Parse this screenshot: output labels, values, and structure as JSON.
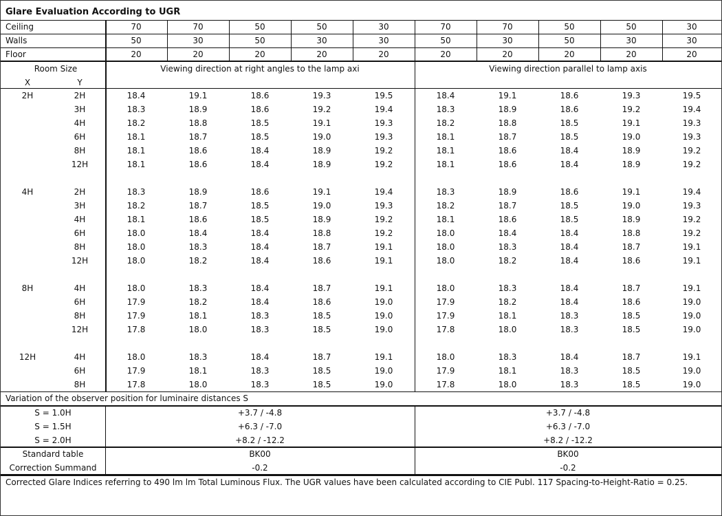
{
  "title": "Glare Evaluation According to UGR",
  "reflectances": {
    "ceiling": {
      "label": "Ceiling",
      "values": [
        "70",
        "70",
        "50",
        "50",
        "30",
        "70",
        "70",
        "50",
        "50",
        "30"
      ]
    },
    "walls": {
      "label": "Walls",
      "values": [
        "50",
        "30",
        "50",
        "30",
        "30",
        "50",
        "30",
        "50",
        "30",
        "30"
      ]
    },
    "floor": {
      "label": "Floor",
      "values": [
        "20",
        "20",
        "20",
        "20",
        "20",
        "20",
        "20",
        "20",
        "20",
        "20"
      ]
    }
  },
  "header": {
    "room_size": "Room Size",
    "x": "X",
    "y": "Y",
    "left_title": "Viewing direction at right angles to the lamp axi",
    "right_title": "Viewing direction parallel to lamp axis"
  },
  "groups": [
    {
      "x": "2H",
      "rows": [
        {
          "y": "2H",
          "values": [
            "18.4",
            "19.1",
            "18.6",
            "19.3",
            "19.5",
            "18.4",
            "19.1",
            "18.6",
            "19.3",
            "19.5"
          ]
        },
        {
          "y": "3H",
          "values": [
            "18.3",
            "18.9",
            "18.6",
            "19.2",
            "19.4",
            "18.3",
            "18.9",
            "18.6",
            "19.2",
            "19.4"
          ]
        },
        {
          "y": "4H",
          "values": [
            "18.2",
            "18.8",
            "18.5",
            "19.1",
            "19.3",
            "18.2",
            "18.8",
            "18.5",
            "19.1",
            "19.3"
          ]
        },
        {
          "y": "6H",
          "values": [
            "18.1",
            "18.7",
            "18.5",
            "19.0",
            "19.3",
            "18.1",
            "18.7",
            "18.5",
            "19.0",
            "19.3"
          ]
        },
        {
          "y": "8H",
          "values": [
            "18.1",
            "18.6",
            "18.4",
            "18.9",
            "19.2",
            "18.1",
            "18.6",
            "18.4",
            "18.9",
            "19.2"
          ]
        },
        {
          "y": "12H",
          "values": [
            "18.1",
            "18.6",
            "18.4",
            "18.9",
            "19.2",
            "18.1",
            "18.6",
            "18.4",
            "18.9",
            "19.2"
          ]
        }
      ]
    },
    {
      "x": "4H",
      "rows": [
        {
          "y": "2H",
          "values": [
            "18.3",
            "18.9",
            "18.6",
            "19.1",
            "19.4",
            "18.3",
            "18.9",
            "18.6",
            "19.1",
            "19.4"
          ]
        },
        {
          "y": "3H",
          "values": [
            "18.2",
            "18.7",
            "18.5",
            "19.0",
            "19.3",
            "18.2",
            "18.7",
            "18.5",
            "19.0",
            "19.3"
          ]
        },
        {
          "y": "4H",
          "values": [
            "18.1",
            "18.6",
            "18.5",
            "18.9",
            "19.2",
            "18.1",
            "18.6",
            "18.5",
            "18.9",
            "19.2"
          ]
        },
        {
          "y": "6H",
          "values": [
            "18.0",
            "18.4",
            "18.4",
            "18.8",
            "19.2",
            "18.0",
            "18.4",
            "18.4",
            "18.8",
            "19.2"
          ]
        },
        {
          "y": "8H",
          "values": [
            "18.0",
            "18.3",
            "18.4",
            "18.7",
            "19.1",
            "18.0",
            "18.3",
            "18.4",
            "18.7",
            "19.1"
          ]
        },
        {
          "y": "12H",
          "values": [
            "18.0",
            "18.2",
            "18.4",
            "18.6",
            "19.1",
            "18.0",
            "18.2",
            "18.4",
            "18.6",
            "19.1"
          ]
        }
      ]
    },
    {
      "x": "8H",
      "rows": [
        {
          "y": "4H",
          "values": [
            "18.0",
            "18.3",
            "18.4",
            "18.7",
            "19.1",
            "18.0",
            "18.3",
            "18.4",
            "18.7",
            "19.1"
          ]
        },
        {
          "y": "6H",
          "values": [
            "17.9",
            "18.2",
            "18.4",
            "18.6",
            "19.0",
            "17.9",
            "18.2",
            "18.4",
            "18.6",
            "19.0"
          ]
        },
        {
          "y": "8H",
          "values": [
            "17.9",
            "18.1",
            "18.3",
            "18.5",
            "19.0",
            "17.9",
            "18.1",
            "18.3",
            "18.5",
            "19.0"
          ]
        },
        {
          "y": "12H",
          "values": [
            "17.8",
            "18.0",
            "18.3",
            "18.5",
            "19.0",
            "17.8",
            "18.0",
            "18.3",
            "18.5",
            "19.0"
          ]
        }
      ]
    },
    {
      "x": "12H",
      "rows": [
        {
          "y": "4H",
          "values": [
            "18.0",
            "18.3",
            "18.4",
            "18.7",
            "19.1",
            "18.0",
            "18.3",
            "18.4",
            "18.7",
            "19.1"
          ]
        },
        {
          "y": "6H",
          "values": [
            "17.9",
            "18.1",
            "18.3",
            "18.5",
            "19.0",
            "17.9",
            "18.1",
            "18.3",
            "18.5",
            "19.0"
          ]
        },
        {
          "y": "8H",
          "values": [
            "17.8",
            "18.0",
            "18.3",
            "18.5",
            "19.0",
            "17.8",
            "18.0",
            "18.3",
            "18.5",
            "19.0"
          ]
        }
      ]
    }
  ],
  "variation": {
    "title": "Variation of the observer position for luminaire distances S",
    "rows": [
      {
        "label": "S = 1.0H",
        "left": "+3.7 / -4.8",
        "right": "+3.7 / -4.8"
      },
      {
        "label": "S = 1.5H",
        "left": "+6.3 / -7.0",
        "right": "+6.3 / -7.0"
      },
      {
        "label": "S = 2.0H",
        "left": "+8.2 / -12.2",
        "right": "+8.2 / -12.2"
      }
    ]
  },
  "standard": {
    "rows": [
      {
        "label": "Standard table",
        "left": "BK00",
        "right": "BK00"
      },
      {
        "label": "Correction Summand",
        "left": "-0.2",
        "right": "-0.2"
      }
    ]
  },
  "footer": "Corrected Glare Indices referring to 490 lm lm Total Luminous Flux. The UGR values have been calculated according to CIE Publ. 117    Spacing-to-Height-Ratio = 0.25."
}
